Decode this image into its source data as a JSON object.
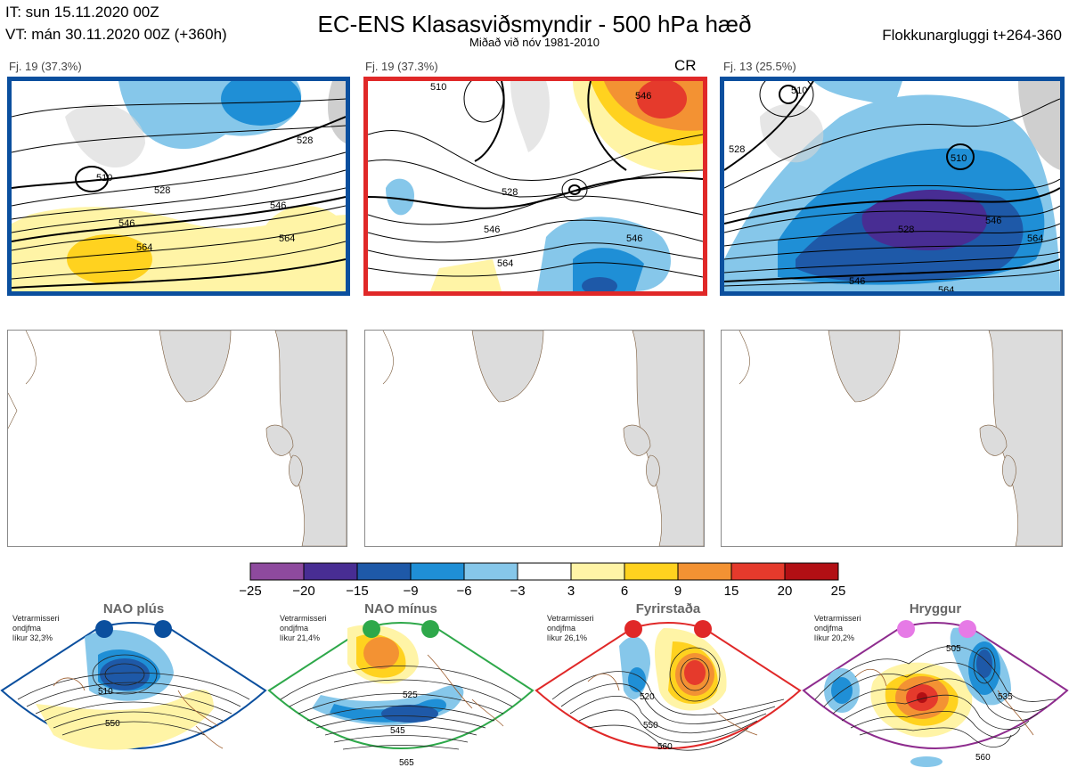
{
  "header": {
    "it_line": "IT: sun 15.11.2020 00Z",
    "vt_line": "VT: mán 30.11.2020 00Z  (+360h)",
    "title": "EC-ENS Klasasviðsmyndir - 500 hPa hæð",
    "subtitle": "Miðað við nóv 1981-2010",
    "window": "Flokkunargluggi t+264-360"
  },
  "clusters": [
    {
      "label": "Fj. 19 (37.3%)",
      "border_color": "#0b4f9e",
      "tag": "",
      "contour_labels": [
        "510",
        "528",
        "546",
        "564",
        "528",
        "546",
        "564"
      ]
    },
    {
      "label": "Fj. 19 (37.3%)",
      "border_color": "#e02828",
      "tag": "CR",
      "contour_labels": [
        "528",
        "546",
        "564",
        "546",
        "546",
        "510"
      ]
    },
    {
      "label": "Fj. 13 (25.5%)",
      "border_color": "#0b4f9e",
      "tag": "",
      "contour_labels": [
        "510",
        "528",
        "546",
        "564",
        "528",
        "546",
        "564",
        "510"
      ]
    }
  ],
  "colorbar": {
    "labels": [
      "−25",
      "−20",
      "−15",
      "−9",
      "−6",
      "−3",
      "3",
      "6",
      "9",
      "15",
      "20",
      "25"
    ],
    "colors": [
      "#8e4a9e",
      "#482d93",
      "#1e59a8",
      "#1f8fd6",
      "#86c7ea",
      "#ffffff",
      "#fff4a6",
      "#ffd21f",
      "#f39233",
      "#e53a2c",
      "#b20f14"
    ]
  },
  "regimes": [
    {
      "name": "NAO plús",
      "info": [
        "Vetrarmisseri",
        "ondjfma",
        "líkur 32,3%"
      ],
      "color": "#0b4f9e",
      "dot_color": "#0b4f9e",
      "contour_labels": [
        "510",
        "550"
      ]
    },
    {
      "name": "NAO mínus",
      "info": [
        "Vetrarmisseri",
        "ondjfma",
        "líkur 21,4%"
      ],
      "color": "#2ea84a",
      "dot_color": "#2ea84a",
      "contour_labels": [
        "525",
        "545",
        "565"
      ]
    },
    {
      "name": "Fyrirstaða",
      "info": [
        "Vetrarmisseri",
        "ondjfma",
        "líkur 26,1%"
      ],
      "color": "#e02828",
      "dot_color": "#e02828",
      "contour_labels": [
        "520",
        "550",
        "560"
      ]
    },
    {
      "name": "Hryggur",
      "info": [
        "Vetrarmisseri",
        "ondjfma",
        "líkur 20,2%"
      ],
      "color": "#8e2c8e",
      "dot_color": "#e67ae6",
      "contour_labels": [
        "505",
        "535",
        "560"
      ]
    }
  ]
}
